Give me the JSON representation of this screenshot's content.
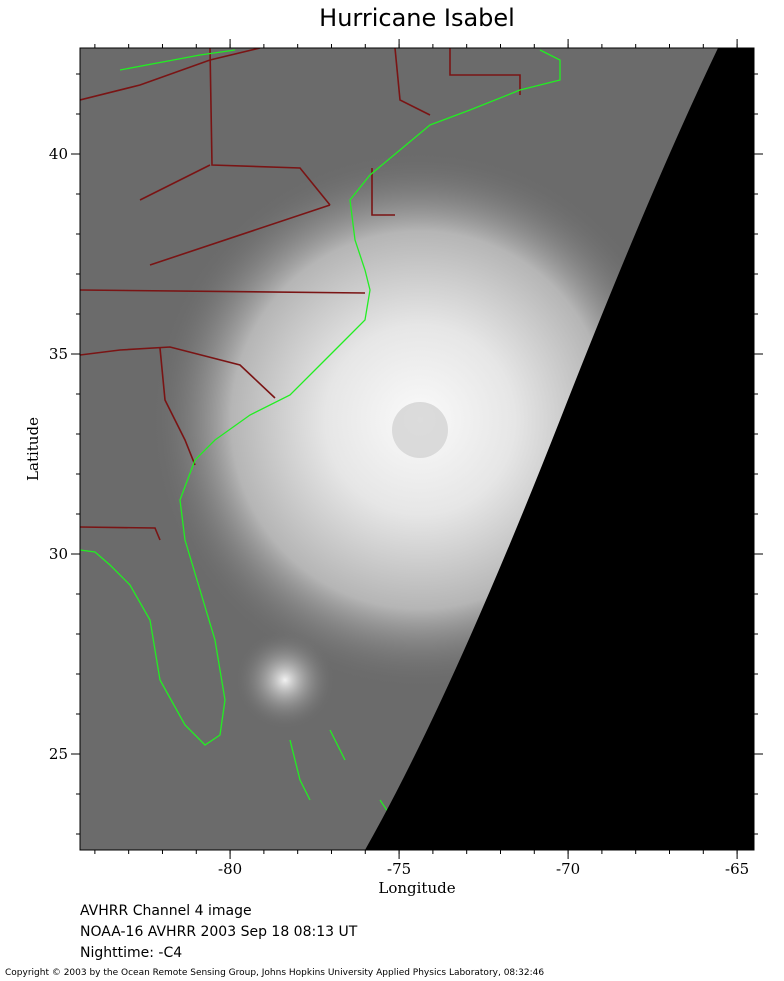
{
  "map": {
    "title": "Hurricane Isabel",
    "xlabel": "Longitude",
    "ylabel": "Latitude",
    "xlim": [
      -84.44,
      -64.5
    ],
    "ylim": [
      22.6,
      42.65
    ],
    "xticks": [
      -80,
      -75,
      -70,
      -65
    ],
    "yticks": [
      25,
      30,
      35,
      40
    ]
  },
  "caption": [
    "AVHRR Channel 4 image",
    "NOAA-16 AVHRR 2003 Sep 18 08:13 UT",
    "Nighttime: -C4"
  ],
  "copyright": "Copyright © 2003 by the Ocean Remote Sensing Group, Johns Hopkins University Applied Physics Laboratory, 08:32:46"
}
